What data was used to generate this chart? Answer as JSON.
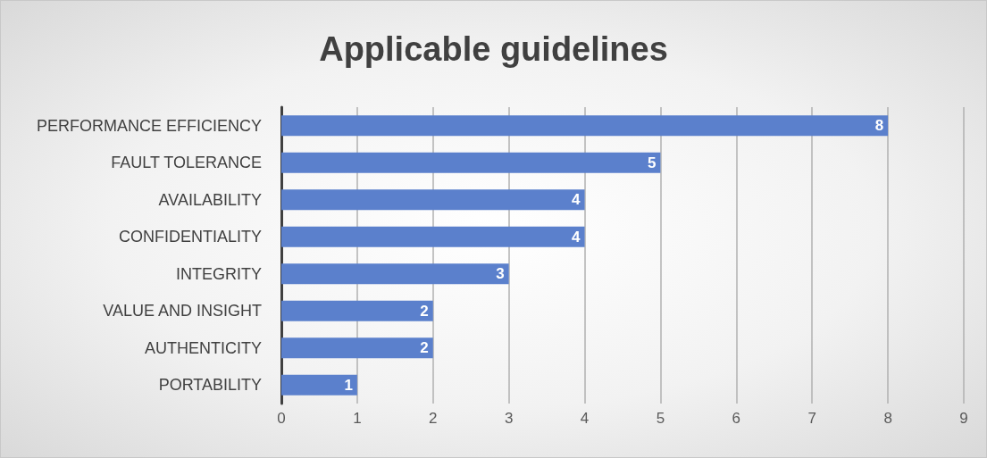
{
  "chart_data": {
    "type": "bar",
    "orientation": "horizontal",
    "title": "Applicable guidelines",
    "categories": [
      "PERFORMANCE EFFICIENCY",
      "FAULT TOLERANCE",
      "AVAILABILITY",
      "CONFIDENTIALITY",
      "INTEGRITY",
      "VALUE AND INSIGHT",
      "AUTHENTICITY",
      "PORTABILITY"
    ],
    "values": [
      8,
      5,
      4,
      4,
      3,
      2,
      2,
      1
    ],
    "color": "#5b80cc",
    "xlim": [
      0,
      9
    ],
    "xticks": [
      0,
      1,
      2,
      3,
      4,
      5,
      6,
      7,
      8,
      9
    ],
    "grid": "x",
    "data_labels": true
  }
}
